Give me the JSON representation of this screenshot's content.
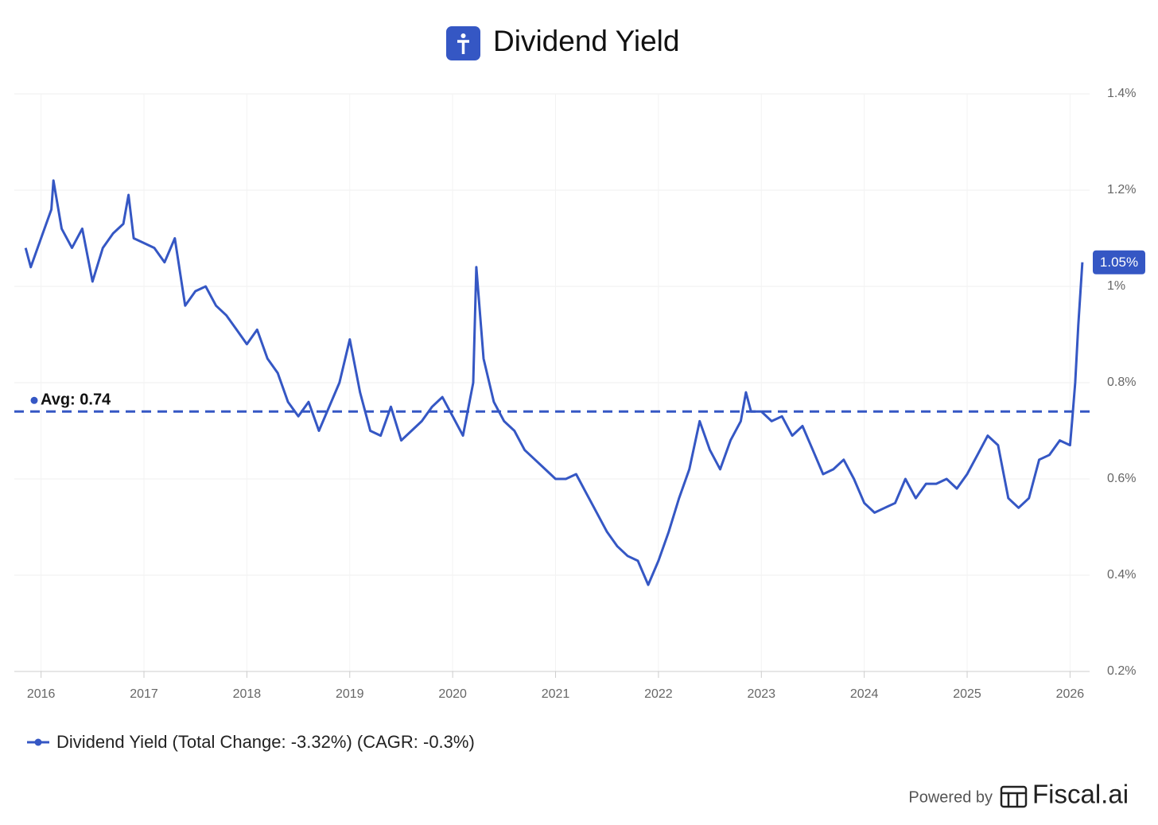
{
  "chart_data": {
    "type": "line",
    "title": "Dividend Yield",
    "x": [
      2015.85,
      2015.9,
      2016.0,
      2016.1,
      2016.12,
      2016.2,
      2016.3,
      2016.4,
      2016.5,
      2016.6,
      2016.7,
      2016.8,
      2016.85,
      2016.9,
      2017.0,
      2017.1,
      2017.2,
      2017.3,
      2017.4,
      2017.5,
      2017.6,
      2017.7,
      2017.8,
      2017.9,
      2018.0,
      2018.1,
      2018.2,
      2018.3,
      2018.4,
      2018.5,
      2018.6,
      2018.7,
      2018.8,
      2018.9,
      2019.0,
      2019.1,
      2019.2,
      2019.3,
      2019.4,
      2019.5,
      2019.6,
      2019.7,
      2019.8,
      2019.9,
      2020.0,
      2020.1,
      2020.2,
      2020.23,
      2020.3,
      2020.4,
      2020.5,
      2020.6,
      2020.7,
      2020.8,
      2020.9,
      2021.0,
      2021.1,
      2021.2,
      2021.3,
      2021.4,
      2021.5,
      2021.6,
      2021.7,
      2021.8,
      2021.9,
      2022.0,
      2022.1,
      2022.2,
      2022.3,
      2022.4,
      2022.5,
      2022.6,
      2022.7,
      2022.8,
      2022.85,
      2022.9,
      2023.0,
      2023.1,
      2023.2,
      2023.3,
      2023.4,
      2023.5,
      2023.6,
      2023.7,
      2023.8,
      2023.9,
      2024.0,
      2024.1,
      2024.2,
      2024.3,
      2024.4,
      2024.5,
      2024.6,
      2024.7,
      2024.8,
      2024.9,
      2025.0,
      2025.1,
      2025.2,
      2025.3,
      2025.4,
      2025.5,
      2025.6,
      2025.7,
      2025.8,
      2025.9,
      2026.0,
      2026.02,
      2026.05,
      2026.08,
      2026.12
    ],
    "series": [
      {
        "name": "Dividend Yield (Total Change: -3.32%) (CAGR: -0.3%)",
        "color": "#3557c4",
        "values": [
          1.08,
          1.04,
          1.1,
          1.16,
          1.22,
          1.12,
          1.08,
          1.12,
          1.01,
          1.08,
          1.11,
          1.13,
          1.19,
          1.1,
          1.09,
          1.08,
          1.05,
          1.1,
          0.96,
          0.99,
          1.0,
          0.96,
          0.94,
          0.91,
          0.88,
          0.91,
          0.85,
          0.82,
          0.76,
          0.73,
          0.76,
          0.7,
          0.75,
          0.8,
          0.89,
          0.78,
          0.7,
          0.69,
          0.75,
          0.68,
          0.7,
          0.72,
          0.75,
          0.77,
          0.73,
          0.69,
          0.8,
          1.04,
          0.85,
          0.76,
          0.72,
          0.7,
          0.66,
          0.64,
          0.62,
          0.6,
          0.6,
          0.61,
          0.57,
          0.53,
          0.49,
          0.46,
          0.44,
          0.43,
          0.38,
          0.43,
          0.49,
          0.56,
          0.62,
          0.72,
          0.66,
          0.62,
          0.68,
          0.72,
          0.78,
          0.74,
          0.74,
          0.72,
          0.73,
          0.69,
          0.71,
          0.66,
          0.61,
          0.62,
          0.64,
          0.6,
          0.55,
          0.53,
          0.54,
          0.55,
          0.6,
          0.56,
          0.59,
          0.59,
          0.6,
          0.58,
          0.61,
          0.65,
          0.69,
          0.67,
          0.56,
          0.54,
          0.56,
          0.64,
          0.65,
          0.68,
          0.67,
          0.72,
          0.8,
          0.92,
          1.05
        ],
        "end_label": "1.05%"
      }
    ],
    "xlim": [
      2015.74,
      2026.19
    ],
    "xticks": [
      2016,
      2017,
      2018,
      2019,
      2020,
      2021,
      2022,
      2023,
      2024,
      2025,
      2026
    ],
    "ylim": [
      0.2,
      1.4
    ],
    "yticks": [
      {
        "value": 0.2,
        "label": "0.2%"
      },
      {
        "value": 0.4,
        "label": "0.4%"
      },
      {
        "value": 0.6,
        "label": "0.6%"
      },
      {
        "value": 0.8,
        "label": "0.8%"
      },
      {
        "value": 1,
        "label": "1%"
      },
      {
        "value": 1.2,
        "label": "1.2%"
      },
      {
        "value": 1.4,
        "label": "1.4%"
      }
    ],
    "grid": true,
    "average": {
      "value": 0.74,
      "label": "Avg: 0.74"
    },
    "footer": {
      "prefix": "Powered by",
      "brand": "Fiscal.ai"
    }
  }
}
